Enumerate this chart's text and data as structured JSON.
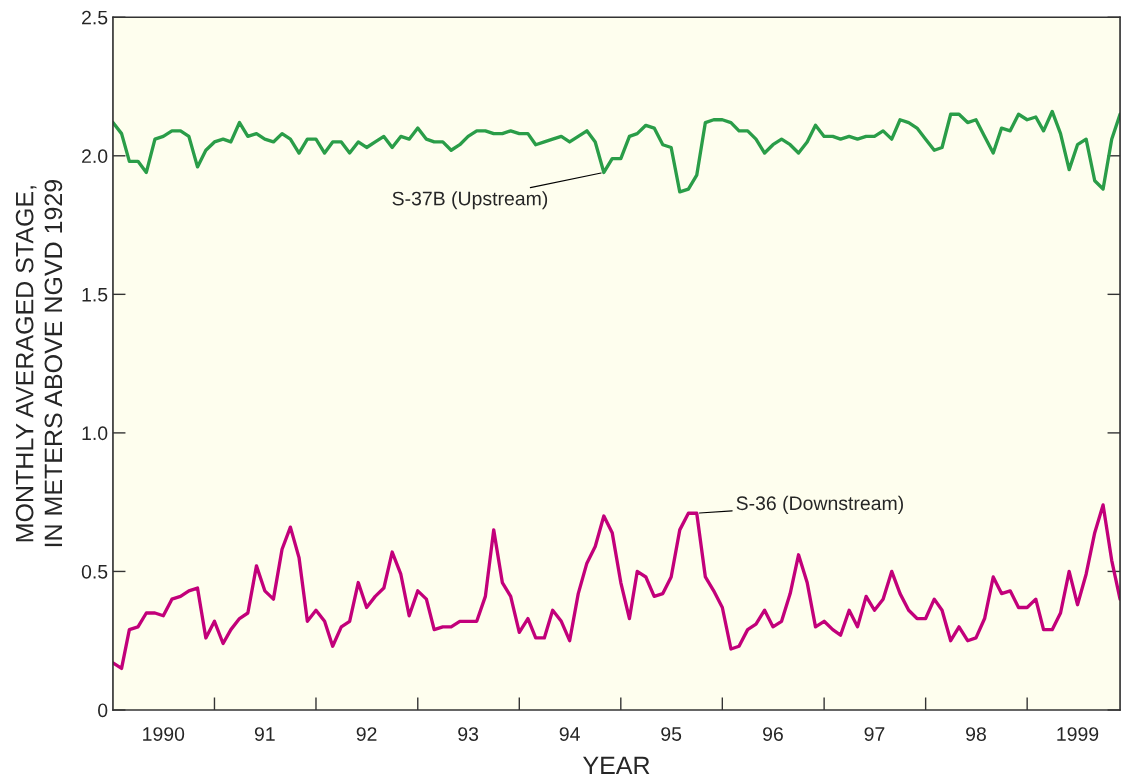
{
  "chart_data": {
    "type": "line",
    "xlabel": "YEAR",
    "ylabel": "MONTHLY AVERAGED STAGE,\nIN METERS ABOVE NGVD 1929",
    "x": [
      "1990-01",
      "1990-02",
      "1990-03",
      "1990-04",
      "1990-05",
      "1990-06",
      "1990-07",
      "1990-08",
      "1990-09",
      "1990-10",
      "1990-11",
      "1990-12",
      "1991-01",
      "1991-02",
      "1991-03",
      "1991-04",
      "1991-05",
      "1991-06",
      "1991-07",
      "1991-08",
      "1991-09",
      "1991-10",
      "1991-11",
      "1991-12",
      "1992-01",
      "1992-02",
      "1992-03",
      "1992-04",
      "1992-05",
      "1992-06",
      "1992-07",
      "1992-08",
      "1992-09",
      "1992-10",
      "1992-11",
      "1992-12",
      "1993-01",
      "1993-02",
      "1993-03",
      "1993-04",
      "1993-05",
      "1993-06",
      "1993-07",
      "1993-08",
      "1993-09",
      "1993-10",
      "1993-11",
      "1993-12",
      "1994-01",
      "1994-02",
      "1994-03",
      "1994-04",
      "1994-05",
      "1994-06",
      "1994-07",
      "1994-08",
      "1994-09",
      "1994-10",
      "1994-11",
      "1994-12",
      "1995-01",
      "1995-02",
      "1995-03",
      "1995-04",
      "1995-05",
      "1995-06",
      "1995-07",
      "1995-08",
      "1995-09",
      "1995-10",
      "1995-11",
      "1995-12",
      "1996-01",
      "1996-02",
      "1996-03",
      "1996-04",
      "1996-05",
      "1996-06",
      "1996-07",
      "1996-08",
      "1996-09",
      "1996-10",
      "1996-11",
      "1996-12",
      "1997-01",
      "1997-02",
      "1997-03",
      "1997-04",
      "1997-05",
      "1997-06",
      "1997-07",
      "1997-08",
      "1997-09",
      "1997-10",
      "1997-11",
      "1997-12",
      "1998-01",
      "1998-02",
      "1998-03",
      "1998-04",
      "1998-05",
      "1998-06",
      "1998-07",
      "1998-08",
      "1998-09",
      "1998-10",
      "1998-11",
      "1998-12",
      "1999-01",
      "1999-02",
      "1999-03",
      "1999-04",
      "1999-05",
      "1999-06",
      "1999-07",
      "1999-08",
      "1999-09",
      "1999-10",
      "1999-11",
      "1999-12"
    ],
    "series": [
      {
        "color": "#2a9d48",
        "values": [
          2.12,
          2.08,
          1.98,
          1.98,
          1.94,
          2.06,
          2.07,
          2.09,
          2.09,
          2.07,
          1.96,
          2.02,
          2.05,
          2.06,
          2.05,
          2.12,
          2.07,
          2.08,
          2.06,
          2.05,
          2.08,
          2.06,
          2.01,
          2.06,
          2.06,
          2.01,
          2.05,
          2.05,
          2.01,
          2.05,
          2.03,
          2.05,
          2.07,
          2.03,
          2.07,
          2.06,
          2.1,
          2.06,
          2.05,
          2.05,
          2.02,
          2.04,
          2.07,
          2.09,
          2.09,
          2.08,
          2.08,
          2.09,
          2.08,
          2.08,
          2.04,
          2.05,
          2.06,
          2.07,
          2.05,
          2.07,
          2.09,
          2.05,
          1.94,
          1.99,
          1.99,
          2.07,
          2.08,
          2.11,
          2.1,
          2.04,
          2.03,
          1.87,
          1.88,
          1.93,
          2.12,
          2.13,
          2.13,
          2.12,
          2.09,
          2.09,
          2.06,
          2.01,
          2.04,
          2.06,
          2.04,
          2.01,
          2.05,
          2.11,
          2.07,
          2.07,
          2.06,
          2.07,
          2.06,
          2.07,
          2.07,
          2.09,
          2.06,
          2.13,
          2.12,
          2.1,
          2.06,
          2.02,
          2.03,
          2.15,
          2.15,
          2.12,
          2.13,
          2.07,
          2.01,
          2.1,
          2.09,
          2.15,
          2.13,
          2.14,
          2.09,
          2.16,
          2.08,
          1.95,
          2.04,
          2.06,
          1.91,
          1.88,
          2.06,
          2.15
        ]
      },
      {
        "color": "#c2007a",
        "values": [
          0.17,
          0.15,
          0.29,
          0.3,
          0.35,
          0.35,
          0.34,
          0.4,
          0.41,
          0.43,
          0.44,
          0.26,
          0.32,
          0.24,
          0.29,
          0.33,
          0.35,
          0.52,
          0.43,
          0.4,
          0.58,
          0.66,
          0.55,
          0.32,
          0.36,
          0.32,
          0.23,
          0.3,
          0.32,
          0.46,
          0.37,
          0.41,
          0.44,
          0.57,
          0.49,
          0.34,
          0.43,
          0.4,
          0.29,
          0.3,
          0.3,
          0.32,
          0.32,
          0.32,
          0.41,
          0.65,
          0.46,
          0.41,
          0.28,
          0.33,
          0.26,
          0.26,
          0.36,
          0.32,
          0.25,
          0.42,
          0.53,
          0.59,
          0.7,
          0.64,
          0.46,
          0.33,
          0.5,
          0.48,
          0.41,
          0.42,
          0.48,
          0.65,
          0.71,
          0.71,
          0.48,
          0.43,
          0.37,
          0.22,
          0.23,
          0.29,
          0.31,
          0.36,
          0.3,
          0.32,
          0.42,
          0.56,
          0.46,
          0.3,
          0.32,
          0.29,
          0.27,
          0.36,
          0.3,
          0.41,
          0.36,
          0.4,
          0.5,
          0.42,
          0.36,
          0.33,
          0.33,
          0.4,
          0.36,
          0.25,
          0.3,
          0.25,
          0.26,
          0.33,
          0.48,
          0.42,
          0.43,
          0.37,
          0.37,
          0.4,
          0.29,
          0.29,
          0.35,
          0.5,
          0.38,
          0.49,
          0.64,
          0.74,
          0.54,
          0.4
        ]
      }
    ],
    "annotations": [
      {
        "text": "S-37B (Upstream)",
        "x": "1994-11",
        "y": 1.94
      },
      {
        "text": "S-36 (Downstream)",
        "x": "1995-10",
        "y": 0.71
      }
    ],
    "xlim": [
      "1990-01-01",
      "1999-12-01"
    ],
    "xticks": [
      {
        "value": "1990-07-01",
        "label": "1990"
      },
      {
        "value": "1991-01-01",
        "label": null
      },
      {
        "value": "1991-07-01",
        "label": "91"
      },
      {
        "value": "1992-01-01",
        "label": null
      },
      {
        "value": "1992-07-01",
        "label": "92"
      },
      {
        "value": "1993-01-01",
        "label": null
      },
      {
        "value": "1993-07-01",
        "label": "93"
      },
      {
        "value": "1994-01-01",
        "label": null
      },
      {
        "value": "1994-07-01",
        "label": "94"
      },
      {
        "value": "1995-01-01",
        "label": null
      },
      {
        "value": "1995-07-01",
        "label": "95"
      },
      {
        "value": "1996-01-01",
        "label": null
      },
      {
        "value": "1996-07-01",
        "label": "96"
      },
      {
        "value": "1997-01-01",
        "label": null
      },
      {
        "value": "1997-07-01",
        "label": "97"
      },
      {
        "value": "1998-01-01",
        "label": null
      },
      {
        "value": "1998-07-01",
        "label": "98"
      },
      {
        "value": "1999-01-01",
        "label": null
      },
      {
        "value": "1999-07-01",
        "label": "1999"
      }
    ],
    "ylim": [
      0,
      2.5
    ],
    "yticks": [
      0,
      0.5,
      {
        "value": 1,
        "label": "1.0"
      },
      1.5,
      {
        "value": 2,
        "label": "2.0"
      },
      2.5
    ],
    "grid": false
  }
}
